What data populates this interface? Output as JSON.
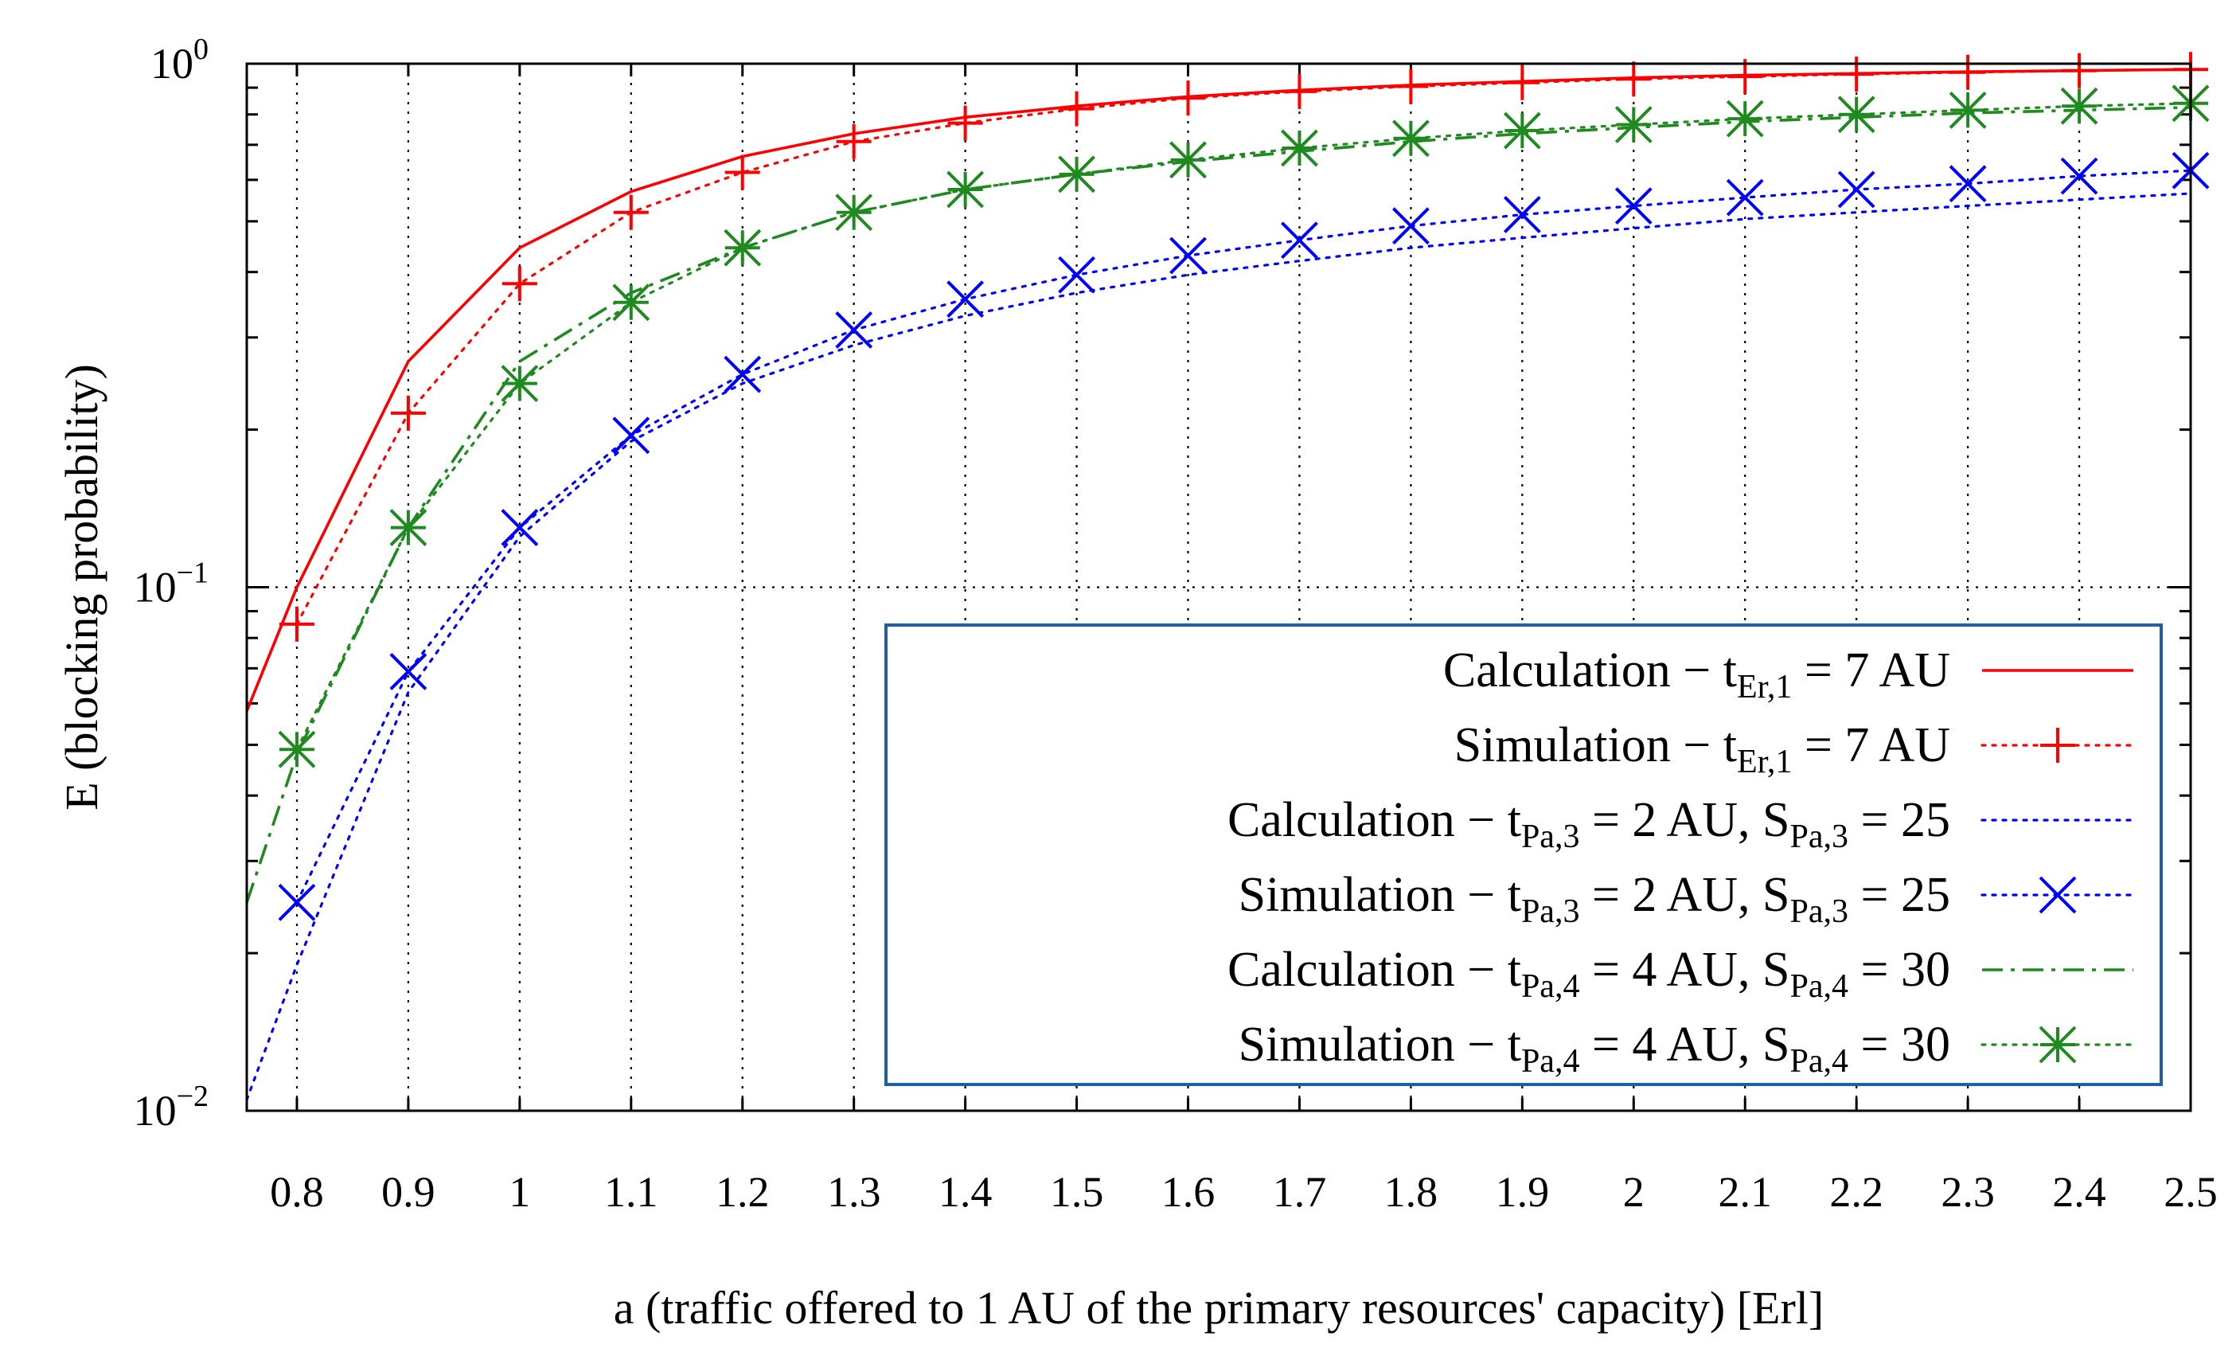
{
  "chart_data": {
    "type": "line",
    "title": "",
    "xlabel": "a (traffic offered to 1 AU of the primary resources' capacity) [Erl]",
    "ylabel": "E (blocking probability)",
    "x_ticks": [
      0.8,
      0.9,
      1,
      1.1,
      1.2,
      1.3,
      1.4,
      1.5,
      1.6,
      1.7,
      1.8,
      1.9,
      2,
      2.1,
      2.2,
      2.3,
      2.4,
      2.5
    ],
    "x_tick_labels": [
      "0.8",
      "0.9",
      "1",
      "1.1",
      "1.2",
      "1.3",
      "1.4",
      "1.5",
      "1.6",
      "1.7",
      "1.8",
      "1.9",
      "2",
      "2.1",
      "2.2",
      "2.3",
      "2.4",
      "2.5"
    ],
    "xlim": [
      0.755,
      2.5
    ],
    "yscale": "log",
    "ylim": [
      0.01,
      1
    ],
    "y_ticks": [
      {
        "base": "10",
        "exp": "−2"
      },
      {
        "base": "10",
        "exp": "−1"
      },
      {
        "base": "10",
        "exp": "0"
      }
    ],
    "grid": true,
    "legend_position": "bottom-right",
    "series": [
      {
        "name": "Calculation − t_{Er,1} = 7 AU",
        "legend": {
          "prefix": "Calculation − t",
          "sub": "Er,1",
          "suffix": " = 7 AU"
        },
        "style": "solid",
        "marker": "none",
        "color": "#ff0000",
        "x": [
          0.755,
          0.8,
          0.9,
          1.0,
          1.1,
          1.2,
          1.3,
          1.4,
          1.5,
          1.6,
          1.7,
          1.8,
          1.9,
          2.0,
          2.1,
          2.2,
          2.3,
          2.4,
          2.5
        ],
        "values": [
          0.058,
          0.1,
          0.27,
          0.445,
          0.57,
          0.665,
          0.735,
          0.79,
          0.83,
          0.865,
          0.89,
          0.91,
          0.925,
          0.94,
          0.95,
          0.958,
          0.965,
          0.97,
          0.975
        ]
      },
      {
        "name": "Simulation − t_{Er,1} = 7 AU",
        "legend": {
          "prefix": "Simulation − t",
          "sub": "Er,1",
          "suffix": " = 7 AU"
        },
        "style": "dotted",
        "marker": "plus",
        "color": "#ff0000",
        "x": [
          0.8,
          0.9,
          1.0,
          1.1,
          1.2,
          1.3,
          1.4,
          1.5,
          1.6,
          1.7,
          1.8,
          1.9,
          2.0,
          2.1,
          2.2,
          2.3,
          2.4,
          2.5
        ],
        "values": [
          0.085,
          0.215,
          0.38,
          0.52,
          0.62,
          0.71,
          0.77,
          0.82,
          0.86,
          0.885,
          0.905,
          0.92,
          0.935,
          0.945,
          0.955,
          0.963,
          0.97,
          0.975
        ]
      },
      {
        "name": "Calculation − t_{Pa,3} = 2 AU, S_{Pa,3} = 25",
        "legend": {
          "prefix": "Calculation − t",
          "sub": "Pa,3",
          "mid": " = 2 AU, S",
          "sub2": "Pa,3",
          "suffix": " = 25"
        },
        "style": "dotted",
        "marker": "none",
        "color": "#0000ff",
        "x": [
          0.755,
          0.8,
          0.9,
          1.0,
          1.1,
          1.2,
          1.3,
          1.4,
          1.5,
          1.6,
          1.7,
          1.8,
          1.9,
          2.0,
          2.1,
          2.2,
          2.3,
          2.4,
          2.5
        ],
        "values": [
          0.0105,
          0.019,
          0.063,
          0.125,
          0.19,
          0.245,
          0.29,
          0.33,
          0.365,
          0.395,
          0.42,
          0.445,
          0.465,
          0.485,
          0.505,
          0.52,
          0.535,
          0.55,
          0.565
        ]
      },
      {
        "name": "Simulation − t_{Pa,3} = 2 AU, S_{Pa,3} = 25",
        "legend": {
          "prefix": "Simulation − t",
          "sub": "Pa,3",
          "mid": " = 2 AU, S",
          "sub2": "Pa,3",
          "suffix": " = 25"
        },
        "style": "dotted",
        "marker": "cross",
        "color": "#0000ff",
        "x": [
          0.8,
          0.9,
          1.0,
          1.1,
          1.2,
          1.3,
          1.4,
          1.5,
          1.6,
          1.7,
          1.8,
          1.9,
          2.0,
          2.1,
          2.2,
          2.3,
          2.4,
          2.5
        ],
        "values": [
          0.025,
          0.069,
          0.13,
          0.195,
          0.255,
          0.31,
          0.355,
          0.395,
          0.43,
          0.46,
          0.49,
          0.515,
          0.535,
          0.555,
          0.575,
          0.59,
          0.61,
          0.625
        ]
      },
      {
        "name": "Calculation − t_{Pa,4} = 4 AU, S_{Pa,4} = 30",
        "legend": {
          "prefix": "Calculation − t",
          "sub": "Pa,4",
          "mid": " = 4 AU, S",
          "sub2": "Pa,4",
          "suffix": " = 30"
        },
        "style": "dashdot",
        "marker": "none",
        "color": "#1f8a1f",
        "x": [
          0.755,
          0.8,
          0.9,
          1.0,
          1.1,
          1.2,
          1.3,
          1.4,
          1.5,
          1.6,
          1.7,
          1.8,
          1.9,
          2.0,
          2.1,
          2.2,
          2.3,
          2.4,
          2.5
        ],
        "values": [
          0.025,
          0.048,
          0.13,
          0.27,
          0.365,
          0.445,
          0.52,
          0.575,
          0.615,
          0.65,
          0.68,
          0.71,
          0.735,
          0.755,
          0.775,
          0.79,
          0.805,
          0.815,
          0.825
        ]
      },
      {
        "name": "Simulation − t_{Pa,4} = 4 AU, S_{Pa,4} = 30",
        "legend": {
          "prefix": "Simulation − t",
          "sub": "Pa,4",
          "mid": " = 4 AU, S",
          "sub2": "Pa,4",
          "suffix": " = 30"
        },
        "style": "dotted",
        "marker": "star",
        "color": "#1f8a1f",
        "x": [
          0.8,
          0.9,
          1.0,
          1.1,
          1.2,
          1.3,
          1.4,
          1.5,
          1.6,
          1.7,
          1.8,
          1.9,
          2.0,
          2.1,
          2.2,
          2.3,
          2.4,
          2.5
        ],
        "values": [
          0.049,
          0.13,
          0.245,
          0.35,
          0.445,
          0.52,
          0.575,
          0.615,
          0.655,
          0.69,
          0.72,
          0.745,
          0.765,
          0.785,
          0.8,
          0.815,
          0.83,
          0.84
        ]
      }
    ]
  }
}
